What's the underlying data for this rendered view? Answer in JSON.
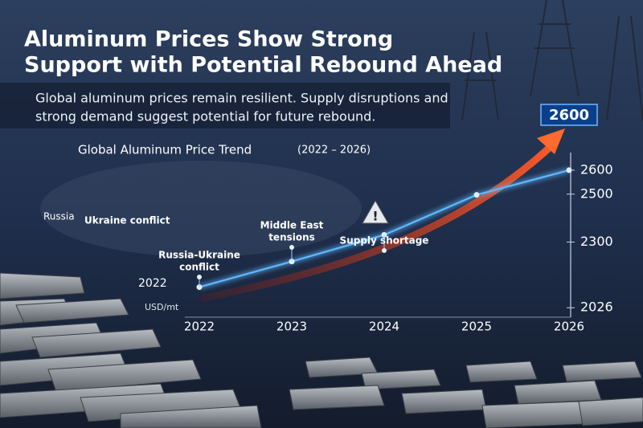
{
  "header": {
    "title": [
      "Aluminum Prices Show Strong",
      "Support with Potential Rebound Ahead"
    ],
    "subtitle": [
      "Global aluminum prices remain resilient. Supply disruptions and",
      "strong demand suggest potential for future rebound."
    ]
  },
  "map_labels": [
    "Russia",
    "Ukraine conflict"
  ],
  "chart_data": {
    "type": "line",
    "title": "Global Aluminum Price Trend",
    "subtitle": "(2022 – 2026)",
    "categories": [
      "2022",
      "2023",
      "2024",
      "2025",
      "2026"
    ],
    "values": [
      2112,
      2219,
      2330,
      2497,
      2600
    ],
    "color": "#5fb8ff",
    "ylim": [
      2000,
      2650
    ],
    "yticks": [
      2026,
      2300,
      2500,
      2600
    ],
    "y_label": "USD/mt",
    "left_label": "2022",
    "callout": 2600,
    "annotations": [
      {
        "category": "2022",
        "text": [
          "Russia-Ukraine",
          "conflict"
        ]
      },
      {
        "category": "2023",
        "text": [
          "Middle East",
          "tensions"
        ]
      },
      {
        "category": "2024",
        "text": [
          "Supply shortage"
        ]
      }
    ]
  }
}
